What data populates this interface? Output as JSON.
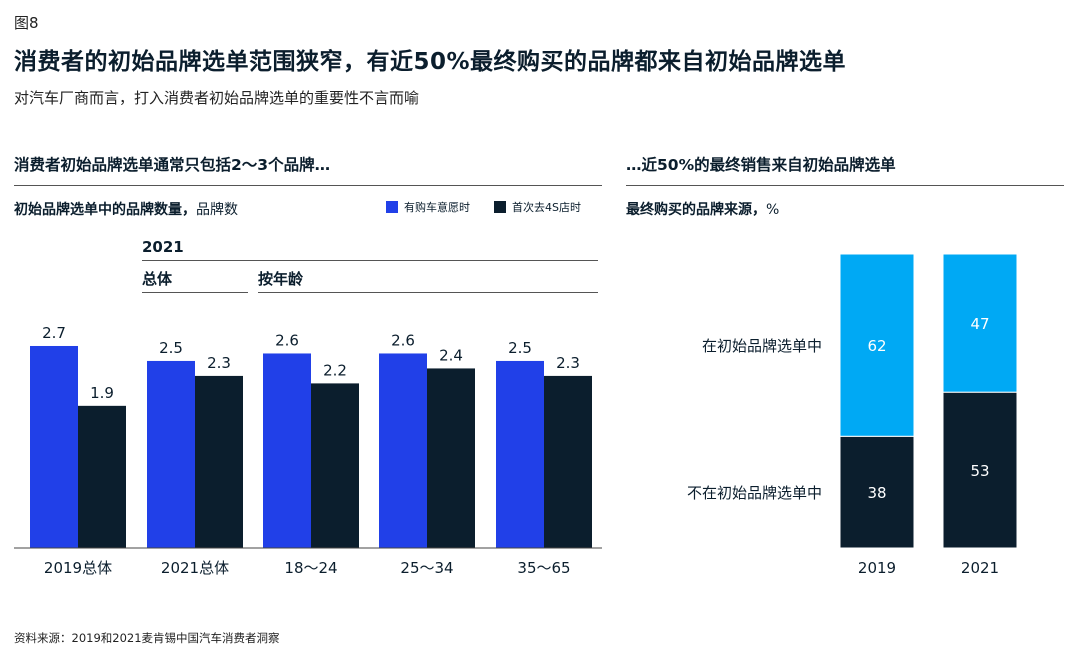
{
  "figure_label": "图8",
  "title": "消费者的初始品牌选单范围狭窄，有近50%最终购买的品牌都来自初始品牌选单",
  "subtitle": "对汽车厂商而言，打入消费者初始品牌选单的重要性不言而喻",
  "source": "资料来源：2019和2021麦肯锡中国汽车消费者洞察",
  "colors": {
    "blue": "#2140e8",
    "navy": "#0b1e2d",
    "cyan": "#00a9f4"
  },
  "left_panel": {
    "heading": "消费者初始品牌选单通常只包括2～3个品牌…",
    "subheading_bold": "初始品牌选单中的品牌数量，",
    "subheading_unit": "品牌数",
    "year_header": "2021",
    "group_overall": "总体",
    "group_by_age": "按年龄"
  },
  "right_panel": {
    "heading": "…近50%的最终销售来自初始品牌选单",
    "subheading_bold": "最终购买的品牌来源，",
    "subheading_unit": "%"
  },
  "chart_data": [
    {
      "type": "bar",
      "categories": [
        "2019总体",
        "2021总体",
        "18～24",
        "25～34",
        "35～65"
      ],
      "series": [
        {
          "name": "有购车意愿时",
          "values": [
            2.7,
            2.5,
            2.6,
            2.6,
            2.5
          ],
          "color": "#2140e8"
        },
        {
          "name": "首次去4S店时",
          "values": [
            1.9,
            2.3,
            2.2,
            2.4,
            2.3
          ],
          "color": "#0b1e2d"
        }
      ],
      "ylim": [
        0,
        3.0
      ],
      "legend": "top-right",
      "grid": false
    },
    {
      "type": "bar",
      "stacked": true,
      "categories": [
        "2019",
        "2021"
      ],
      "series": [
        {
          "name": "在初始品牌选单中",
          "values": [
            62,
            47
          ],
          "color": "#00a9f4"
        },
        {
          "name": "不在初始品牌选单中",
          "values": [
            38,
            53
          ],
          "color": "#0b1e2d"
        }
      ],
      "ylim": [
        0,
        100
      ],
      "grid": false
    }
  ]
}
